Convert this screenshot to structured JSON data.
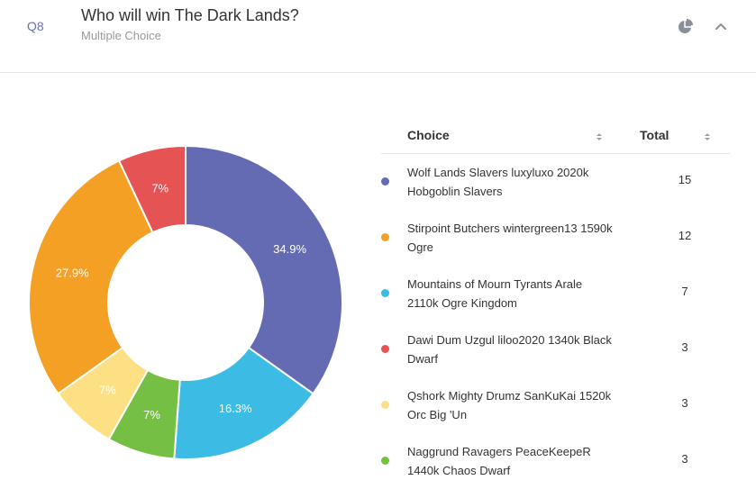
{
  "question": {
    "number": "Q8",
    "title": "Who will win The Dark Lands?",
    "subtitle": "Multiple Choice"
  },
  "icons": {
    "chart_toggle": "pie-chart-icon",
    "collapse": "chevron-up-icon"
  },
  "legend": {
    "choice_header": "Choice",
    "total_header": "Total"
  },
  "chart_data": {
    "type": "pie",
    "donut": true,
    "categories": [
      "Wolf Lands Slavers luxyluxo 2020k Hobgoblin Slavers",
      "Stirpoint Butchers wintergreen13 1590k Ogre",
      "Mountains of Mourn Tyrants Arale 2110k Ogre Kingdom",
      "Dawi Dum Uzgul liloo2020 1340k Black Dwarf",
      "Qshork Mighty Drumz SanKuKai 1520k Orc Big 'Un",
      "Naggrund Ravagers PeaceKeepeR 1440k Chaos Dwarf"
    ],
    "values": [
      15,
      12,
      7,
      3,
      3,
      3
    ],
    "percent_labels": [
      "34.9%",
      "27.9%",
      "16.3%",
      "7%",
      "7%",
      "7%"
    ],
    "colors": [
      "#656bb3",
      "#f4a024",
      "#3cbce4",
      "#e65355",
      "#fde083",
      "#75bf44"
    ],
    "slice_order": [
      0,
      2,
      5,
      4,
      1,
      3
    ]
  }
}
